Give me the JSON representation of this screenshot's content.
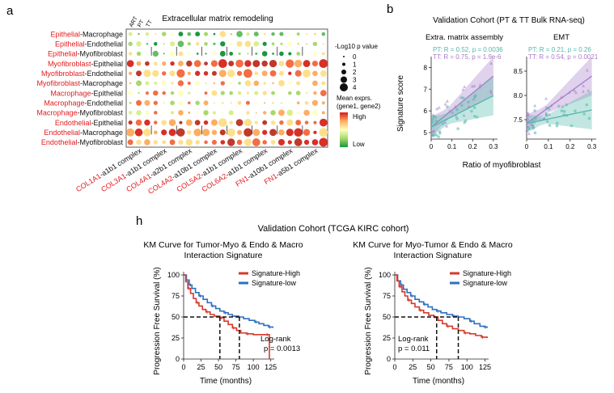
{
  "panel_a": {
    "letter": "a",
    "title": "Extracellular matrix remodeling",
    "column_group_labels": [
      "ART",
      "PT",
      "TT"
    ],
    "rows": [
      {
        "red": "Epithelial",
        "black": "-Macrophage"
      },
      {
        "red": "Epithelial",
        "black": "-Endothelial"
      },
      {
        "red": "Epithelial",
        "black": "-Myofibroblast"
      },
      {
        "red": "Myofibroblast",
        "black": "-Epithelial"
      },
      {
        "red": "Myofibroblast",
        "black": "-Endothelial"
      },
      {
        "red": "Myofibroblast",
        "black": "-Macrophage"
      },
      {
        "red": "Macrophage",
        "black": "-Epithelial"
      },
      {
        "red": "Macrophage",
        "black": "-Endothelial"
      },
      {
        "red": "Macrophage",
        "black": "-Myofibroblast"
      },
      {
        "red": "Endothelial",
        "black": "-Epithelial"
      },
      {
        "red": "Endothelial",
        "black": "-Macrophage"
      },
      {
        "red": "Endothelial",
        "black": "-Myofibroblast"
      }
    ],
    "complexes": [
      {
        "red": "COL1A1",
        "black": "-a1b1 complex"
      },
      {
        "red": "COL3A1",
        "black": "-a1b1 complex"
      },
      {
        "red": "COL4A1",
        "black": "-a2b1 complex"
      },
      {
        "red": "COL4A2",
        "black": "-a10b1 complex"
      },
      {
        "red": "COL5A2",
        "black": "-a1b1 complex"
      },
      {
        "red": "COL6A2",
        "black": "-a1b1 complex"
      },
      {
        "red": "FN1",
        "black": "-a10b1 complex"
      },
      {
        "red": "FN1",
        "black": "-a5b1 complex"
      }
    ],
    "legend": {
      "pvalue_title": "-Log10 p value",
      "pvalue_levels": [
        "0",
        "1",
        "2",
        "3",
        "4"
      ],
      "color_title_1": "Mean exprs.",
      "color_title_2": "(gene1, gene2)",
      "high": "High",
      "low": "Low",
      "color_high": "#d7191c",
      "color_mid": "#ffffbf",
      "color_low": "#1a9641"
    }
  },
  "panel_b": {
    "letter": "b",
    "title": "Validation Cohort (PT & TT Bulk RNA-seq)",
    "ylabel": "Signature score",
    "xlabel": "Ratio of myofibroblast",
    "pt_color": "#4fb8a8",
    "tt_color": "#a77bc9",
    "plots": [
      {
        "title": "Extra. matrix assembly",
        "pt_stat": "PT: R = 0.52, p = 0.0036",
        "tt_stat": "TT: R = 0.75, p = 1.9e-6",
        "yticks": [
          "5",
          "6",
          "7",
          "8"
        ],
        "xticks": [
          "0",
          "0.1",
          "0.2",
          "0.3"
        ]
      },
      {
        "title": "EMT",
        "pt_stat": "PT: R = 0.21, p = 0.26",
        "tt_stat": "TT: R = 0.54, p = 0.0021",
        "yticks": [
          "7.5",
          "8.0",
          "8.5"
        ],
        "xticks": [
          "0",
          "0.1",
          "0.2",
          "0.3"
        ]
      }
    ]
  },
  "panel_h": {
    "letter": "h",
    "title": "Validation Cohort (TCGA KIRC cohort)",
    "ylabel": "Progression Free Survival (%)",
    "xlabel": "Time (months)",
    "high_color": "#d6392b",
    "low_color": "#2f6fbf",
    "plots": [
      {
        "title_1": "KM Curve for Tumor-Myo & Endo  & Macro",
        "title_2": "Interaction Signature",
        "legend_high": "Signature-High",
        "legend_low": "Signature-low",
        "logrank_1": "Log-rank",
        "logrank_2": "p = 0.0013",
        "yticks": [
          "100",
          "75",
          "50",
          "25",
          "0"
        ],
        "xticks": [
          "0",
          "25",
          "50",
          "75",
          "100",
          "125"
        ],
        "median_high": 52,
        "median_low": 80
      },
      {
        "title_1": "KM Curve for Myo-Tumor & Endo  & Macro",
        "title_2": "Interaction Signature",
        "legend_high": "Signature-High",
        "legend_low": "Signature-low",
        "logrank_1": "Log-rank",
        "logrank_2": "p = 0.011",
        "yticks": [
          "100",
          "75",
          "50",
          "25",
          "0"
        ],
        "xticks": [
          "0",
          "25",
          "50",
          "75",
          "100",
          "125"
        ],
        "median_high": 58,
        "median_low": 88
      }
    ]
  }
}
